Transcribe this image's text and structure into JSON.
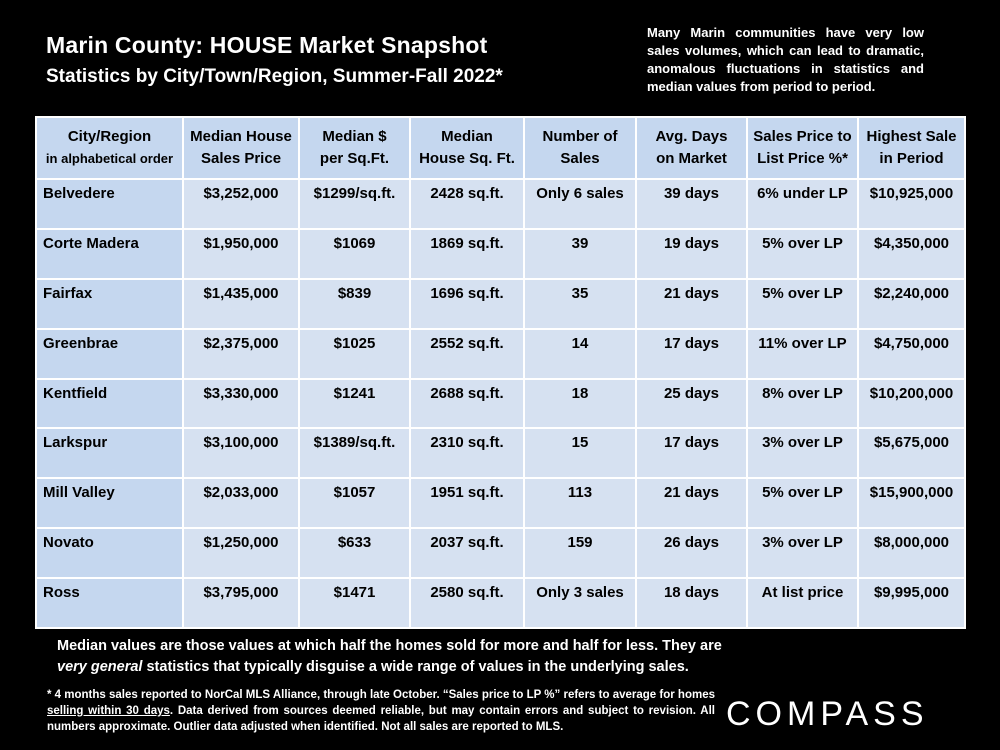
{
  "title": "Marin County: HOUSE Market Snapshot",
  "subtitle": "Statistics by City/Town/Region, Summer-Fall 2022*",
  "note": "Many Marin communities have very low sales volumes, which can lead to dramatic, anomalous fluctuations in statistics and median values from period to period.",
  "table": {
    "headers": [
      {
        "line1": "City/Region",
        "line2": "in alphabetical order"
      },
      {
        "line1": "Median House",
        "line2": "Sales Price"
      },
      {
        "line1": "Median $",
        "line2": "per Sq.Ft."
      },
      {
        "line1": "Median",
        "line2": "House Sq. Ft."
      },
      {
        "line1": "Number of",
        "line2": "Sales"
      },
      {
        "line1": "Avg. Days",
        "line2": "on Market"
      },
      {
        "line1": "Sales Price to",
        "line2": "List Price %*"
      },
      {
        "line1": "Highest Sale",
        "line2": "in Period"
      }
    ],
    "rows": [
      [
        "Belvedere",
        "$3,252,000",
        "$1299/sq.ft.",
        "2428 sq.ft.",
        "Only 6 sales",
        "39 days",
        "6% under LP",
        "$10,925,000"
      ],
      [
        "Corte Madera",
        "$1,950,000",
        "$1069",
        "1869 sq.ft.",
        "39",
        "19 days",
        "5% over LP",
        "$4,350,000"
      ],
      [
        "Fairfax",
        "$1,435,000",
        "$839",
        "1696 sq.ft.",
        "35",
        "21 days",
        "5% over LP",
        "$2,240,000"
      ],
      [
        "Greenbrae",
        "$2,375,000",
        "$1025",
        "2552 sq.ft.",
        "14",
        "17 days",
        "11% over LP",
        "$4,750,000"
      ],
      [
        "Kentfield",
        "$3,330,000",
        "$1241",
        "2688 sq.ft.",
        "18",
        "25 days",
        "8% over LP",
        "$10,200,000"
      ],
      [
        "Larkspur",
        "$3,100,000",
        "$1389/sq.ft.",
        "2310 sq.ft.",
        "15",
        "17 days",
        "3% over LP",
        "$5,675,000"
      ],
      [
        "Mill Valley",
        "$2,033,000",
        "$1057",
        "1951 sq.ft.",
        "113",
        "21 days",
        "5% over LP",
        "$15,900,000"
      ],
      [
        "Novato",
        "$1,250,000",
        "$633",
        "2037 sq.ft.",
        "159",
        "26 days",
        "3% over LP",
        "$8,000,000"
      ],
      [
        "Ross",
        "$3,795,000",
        "$1471",
        "2580 sq.ft.",
        "Only 3 sales",
        "18 days",
        "At list price",
        "$9,995,000"
      ]
    ]
  },
  "median_note": {
    "part1": "Median values are those values at which half the homes sold for more and half for less. They are ",
    "emphasis": "very general",
    "part2": " statistics that typically disguise a wide range of values in the underlying sales."
  },
  "footnote": {
    "part1": "* 4 months sales reported to NorCal MLS Alliance, through late October. “Sales price to LP %” refers to average for homes ",
    "underlined": "selling within 30 days",
    "part2": ". Data derived from sources deemed reliable, but may contain errors and subject to revision. All numbers approximate. Outlier data adjusted when identified. Not all sales are reported to MLS."
  },
  "logo": "COMPASS"
}
